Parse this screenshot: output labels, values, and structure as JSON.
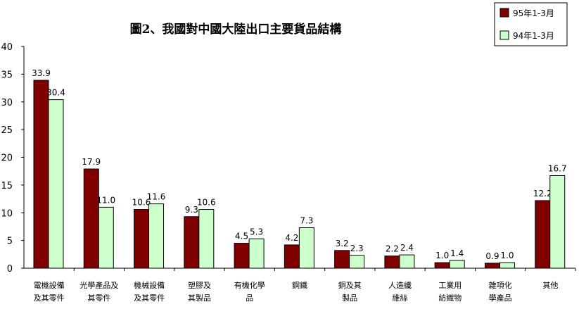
{
  "chart_data": {
    "type": "bar",
    "title": "圖2、我國對中國大陸出口主要貨品結構",
    "xlabel": "",
    "ylabel": "",
    "ylim": [
      0,
      40
    ],
    "yticks": [
      0,
      5,
      10,
      15,
      20,
      25,
      30,
      35,
      40
    ],
    "grid": false,
    "legend_position": "top-right",
    "categories": [
      [
        "電機設備",
        "及其零件"
      ],
      [
        "光學產品及",
        "其零件"
      ],
      [
        "機械設備",
        "及其零件"
      ],
      [
        "塑膠及",
        "其製品"
      ],
      [
        "有機化學",
        "品"
      ],
      [
        "鋼鐵"
      ],
      [
        "銅及其",
        "製品"
      ],
      [
        "人造纖",
        "維絲"
      ],
      [
        "工業用",
        "紡織物"
      ],
      [
        "雜項化",
        "學產品"
      ],
      [
        "其他"
      ]
    ],
    "series": [
      {
        "name": "95年1-3月",
        "color": "#800000",
        "values": [
          33.9,
          17.9,
          10.6,
          9.3,
          4.5,
          4.2,
          3.2,
          2.2,
          1.0,
          0.9,
          12.2
        ],
        "labels": [
          "33.9",
          "17.9",
          "10.6",
          "9.3",
          "4.5",
          "4.2",
          "3.2",
          "2.2",
          "1.0",
          "0.9",
          "12.2"
        ]
      },
      {
        "name": "94年1-3月",
        "color": "#ccffcc",
        "values": [
          30.4,
          11.0,
          11.6,
          10.6,
          5.3,
          7.3,
          2.3,
          2.4,
          1.4,
          1.0,
          16.7
        ],
        "labels": [
          "30.4",
          "11.0",
          "11.6",
          "10.6",
          "5.3",
          "7.3",
          "2.3",
          "2.4",
          "1.4",
          "1.0",
          "16.7"
        ]
      }
    ]
  }
}
